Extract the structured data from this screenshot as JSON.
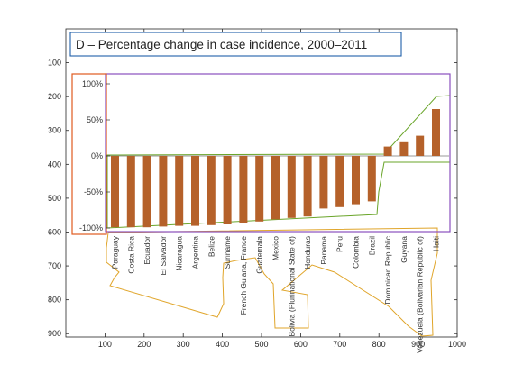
{
  "figure": {
    "background": "#ffffff",
    "outer_axes": {
      "xlim": [
        0,
        1000
      ],
      "ylim": [
        0,
        910
      ],
      "y_reversed": true,
      "x_ticks": [
        100,
        200,
        300,
        400,
        500,
        600,
        700,
        800,
        900,
        1000
      ],
      "y_ticks": [
        100,
        200,
        300,
        400,
        500,
        600,
        700,
        800,
        900
      ]
    },
    "panel_title": "D –  Percentage change in case incidence, 2000–2011"
  },
  "chart_data": {
    "type": "bar",
    "title": "D –  Percentage change in case incidence, 2000–2011",
    "xlabel": "",
    "ylabel": "",
    "ylim": [
      -100,
      100
    ],
    "y_ticks": [
      100,
      50,
      0,
      -50,
      -100
    ],
    "y_tick_labels": [
      "100%",
      "50%",
      "0%",
      "-50%",
      "-100%"
    ],
    "grid": false,
    "categories": [
      "Paraguay",
      "Costa Rica",
      "Ecuador",
      "El Salvador",
      "Nicaragua",
      "Argentina",
      "Belize",
      "Suriname",
      "French Guiana, France",
      "Guatemala",
      "Mexico",
      "Bolivia (Plurinational State of)",
      "Honduras",
      "Panama",
      "Peru",
      "Colombia",
      "Brazil",
      "Dominican Republic",
      "Guyana",
      "Venezuela (Bolivarian Republic of)",
      "Haiti"
    ],
    "values": [
      -99,
      -99,
      -99,
      -98,
      -97,
      -97,
      -96,
      -95,
      -93,
      -91,
      -88,
      -86,
      -84,
      -73,
      -71,
      -67,
      -63,
      13,
      19,
      28,
      65
    ],
    "bar_color": "#b5612a"
  },
  "annotations": {
    "colors": {
      "title_box": "#1f5fa8",
      "ytick_box": "#e05a1e",
      "plot_box": "#8a4fbf",
      "bars_outline": "#6aa52a",
      "labels_outline": "#e0a52a"
    }
  }
}
